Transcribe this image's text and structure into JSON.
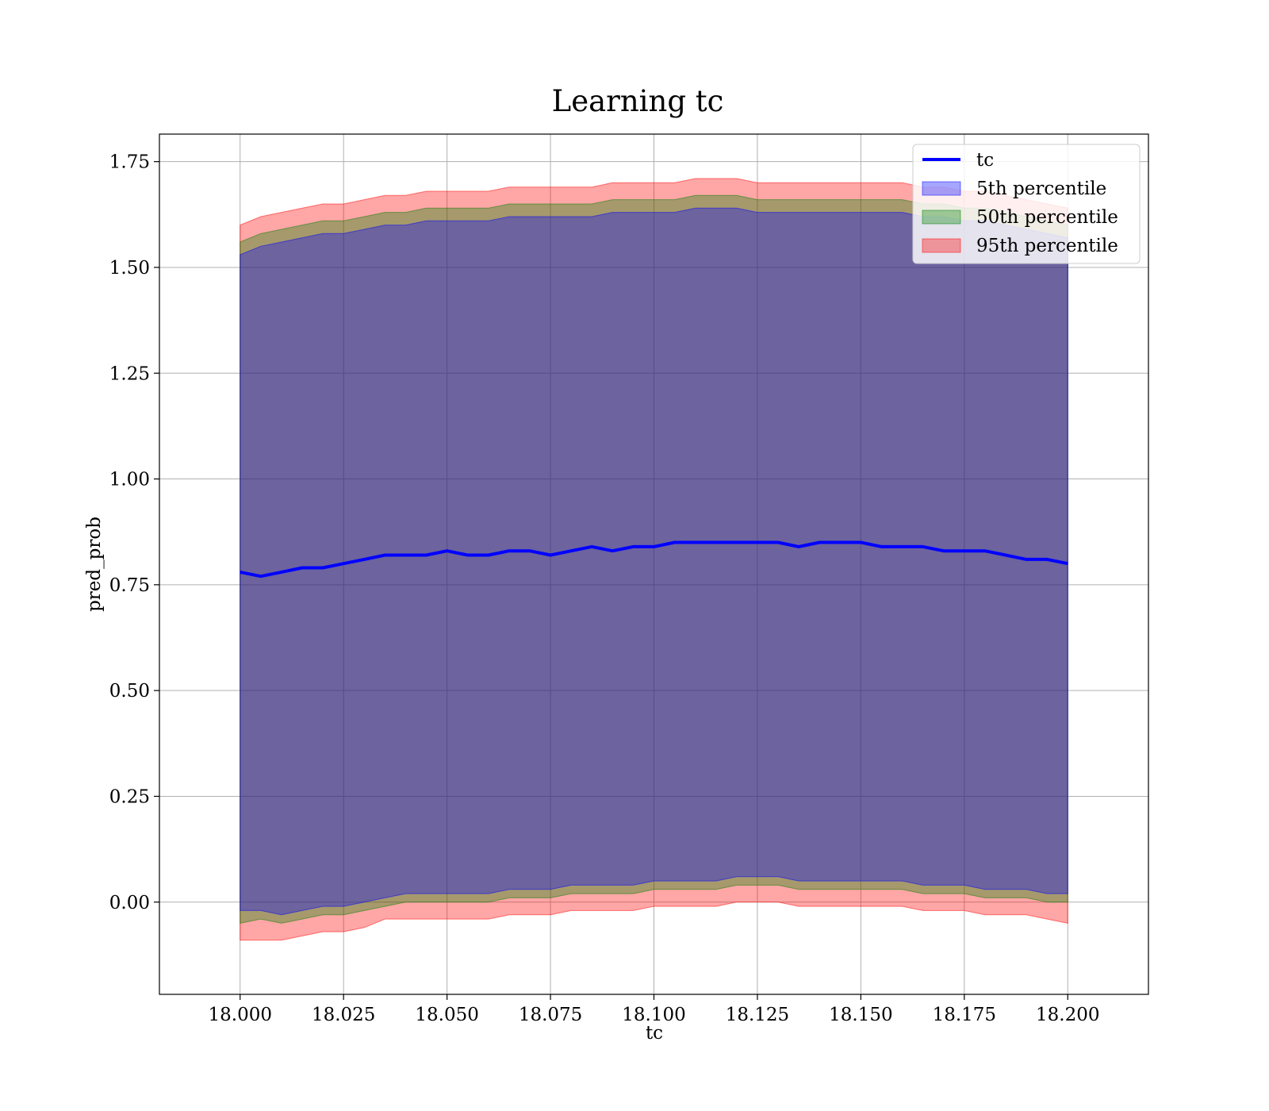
{
  "chart_data": {
    "type": "line",
    "title": "Learning tc",
    "xlabel": "tc",
    "ylabel": "pred_prob",
    "xlim": [
      17.9805,
      18.2195
    ],
    "ylim": [
      -0.218,
      1.815
    ],
    "xticks": [
      18.0,
      18.025,
      18.05,
      18.075,
      18.1,
      18.125,
      18.15,
      18.175,
      18.2
    ],
    "xtick_labels": [
      "18.000",
      "18.025",
      "18.050",
      "18.075",
      "18.100",
      "18.125",
      "18.150",
      "18.175",
      "18.200"
    ],
    "yticks": [
      0.0,
      0.25,
      0.5,
      0.75,
      1.0,
      1.25,
      1.5,
      1.75
    ],
    "ytick_labels": [
      "0.00",
      "0.25",
      "0.50",
      "0.75",
      "1.00",
      "1.25",
      "1.50",
      "1.75"
    ],
    "grid": true,
    "legend_position": "top-right",
    "x": [
      18.0,
      18.005,
      18.01,
      18.015,
      18.02,
      18.025,
      18.03,
      18.035,
      18.04,
      18.045,
      18.05,
      18.055,
      18.06,
      18.065,
      18.07,
      18.075,
      18.08,
      18.085,
      18.09,
      18.095,
      18.1,
      18.105,
      18.11,
      18.115,
      18.12,
      18.125,
      18.13,
      18.135,
      18.14,
      18.145,
      18.15,
      18.155,
      18.16,
      18.165,
      18.17,
      18.175,
      18.18,
      18.185,
      18.19,
      18.195,
      18.2
    ],
    "series": [
      {
        "name": "tc",
        "kind": "line",
        "color": "#0000ff",
        "values": [
          0.78,
          0.77,
          0.78,
          0.79,
          0.79,
          0.8,
          0.81,
          0.82,
          0.82,
          0.82,
          0.83,
          0.82,
          0.82,
          0.83,
          0.83,
          0.82,
          0.83,
          0.84,
          0.83,
          0.84,
          0.84,
          0.85,
          0.85,
          0.85,
          0.85,
          0.85,
          0.85,
          0.84,
          0.85,
          0.85,
          0.85,
          0.84,
          0.84,
          0.84,
          0.83,
          0.83,
          0.83,
          0.82,
          0.81,
          0.81,
          0.8
        ]
      },
      {
        "name": "5th percentile",
        "kind": "band",
        "color": "#0000ff",
        "lower": [
          -0.02,
          -0.02,
          -0.03,
          -0.02,
          -0.01,
          -0.01,
          0.0,
          0.01,
          0.02,
          0.02,
          0.02,
          0.02,
          0.02,
          0.03,
          0.03,
          0.03,
          0.04,
          0.04,
          0.04,
          0.04,
          0.05,
          0.05,
          0.05,
          0.05,
          0.06,
          0.06,
          0.06,
          0.05,
          0.05,
          0.05,
          0.05,
          0.05,
          0.05,
          0.04,
          0.04,
          0.04,
          0.03,
          0.03,
          0.03,
          0.02,
          0.02
        ],
        "upper": [
          1.53,
          1.55,
          1.56,
          1.57,
          1.58,
          1.58,
          1.59,
          1.6,
          1.6,
          1.61,
          1.61,
          1.61,
          1.61,
          1.62,
          1.62,
          1.62,
          1.62,
          1.62,
          1.63,
          1.63,
          1.63,
          1.63,
          1.64,
          1.64,
          1.64,
          1.63,
          1.63,
          1.63,
          1.63,
          1.63,
          1.63,
          1.63,
          1.63,
          1.62,
          1.62,
          1.61,
          1.61,
          1.6,
          1.59,
          1.58,
          1.57
        ]
      },
      {
        "name": "50th percentile",
        "kind": "band",
        "color": "#008000",
        "lower": [
          -0.05,
          -0.04,
          -0.05,
          -0.04,
          -0.03,
          -0.03,
          -0.02,
          -0.01,
          0.0,
          0.0,
          0.0,
          0.0,
          0.0,
          0.01,
          0.01,
          0.01,
          0.02,
          0.02,
          0.02,
          0.02,
          0.03,
          0.03,
          0.03,
          0.03,
          0.04,
          0.04,
          0.04,
          0.03,
          0.03,
          0.03,
          0.03,
          0.03,
          0.03,
          0.02,
          0.02,
          0.02,
          0.01,
          0.01,
          0.01,
          0.0,
          0.0
        ],
        "upper": [
          1.56,
          1.58,
          1.59,
          1.6,
          1.61,
          1.61,
          1.62,
          1.63,
          1.63,
          1.64,
          1.64,
          1.64,
          1.64,
          1.65,
          1.65,
          1.65,
          1.65,
          1.65,
          1.66,
          1.66,
          1.66,
          1.66,
          1.67,
          1.67,
          1.67,
          1.66,
          1.66,
          1.66,
          1.66,
          1.66,
          1.66,
          1.66,
          1.66,
          1.65,
          1.65,
          1.64,
          1.64,
          1.63,
          1.62,
          1.61,
          1.6
        ]
      },
      {
        "name": "95th percentile",
        "kind": "band",
        "color": "#ff0000",
        "lower": [
          -0.09,
          -0.09,
          -0.09,
          -0.08,
          -0.07,
          -0.07,
          -0.06,
          -0.04,
          -0.04,
          -0.04,
          -0.04,
          -0.04,
          -0.04,
          -0.03,
          -0.03,
          -0.03,
          -0.02,
          -0.02,
          -0.02,
          -0.02,
          -0.01,
          -0.01,
          -0.01,
          -0.01,
          0.0,
          0.0,
          0.0,
          -0.01,
          -0.01,
          -0.01,
          -0.01,
          -0.01,
          -0.01,
          -0.02,
          -0.02,
          -0.02,
          -0.03,
          -0.03,
          -0.03,
          -0.04,
          -0.05
        ],
        "upper": [
          1.6,
          1.62,
          1.63,
          1.64,
          1.65,
          1.65,
          1.66,
          1.67,
          1.67,
          1.68,
          1.68,
          1.68,
          1.68,
          1.69,
          1.69,
          1.69,
          1.69,
          1.69,
          1.7,
          1.7,
          1.7,
          1.7,
          1.71,
          1.71,
          1.71,
          1.7,
          1.7,
          1.7,
          1.7,
          1.7,
          1.7,
          1.7,
          1.7,
          1.69,
          1.69,
          1.68,
          1.68,
          1.67,
          1.66,
          1.65,
          1.64
        ]
      }
    ]
  }
}
